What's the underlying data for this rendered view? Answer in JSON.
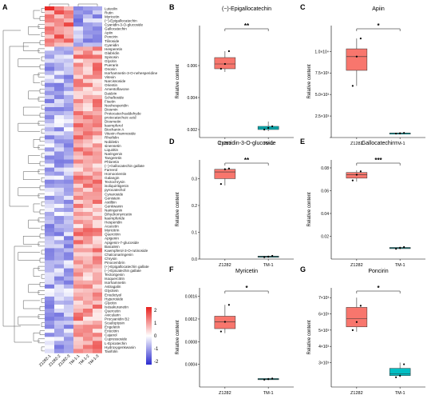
{
  "panels": {
    "A": "A",
    "B": "B",
    "C": "C",
    "D": "D",
    "E": "E",
    "F": "F",
    "G": "G"
  },
  "common": {
    "ylabel": "Relative content",
    "groups": [
      "Z1282",
      "TM-1"
    ],
    "sig_levels": {
      "B": "**",
      "C": "*",
      "D": "**",
      "E": "***",
      "F": "*",
      "G": "*"
    }
  },
  "colors": {
    "z1282_box": "#F8766D",
    "tm1_box": "#00BFC4",
    "heat_high": "#E8211E",
    "heat_mid": "#FFFFFF",
    "heat_low": "#2B2BCF"
  },
  "chart_data": [
    {
      "type": "heatmap",
      "panel": "A",
      "columns": [
        "Z1282-1",
        "Z1282-2",
        "Z1282-3",
        "TM-1-1",
        "TM-1-2",
        "TM-1-3"
      ],
      "rows": [
        "Luteolin",
        "Rutin",
        "Myricetin",
        "(−)-Epigallocatechin",
        "Cyanidin-3-O-glucoside",
        "Gallocatechin",
        "Apiin",
        "Poncirin",
        "Tiliroside",
        "Cyanidin",
        "Hesperetin",
        "Glabridin",
        "Spinosin",
        "Glycitin",
        "Puerarin",
        "Ononin",
        "Isorhamnetin-3-O-nehesperidine",
        "Vitexin",
        "Narcissoside",
        "Orientin",
        "Amentoflavone",
        "Daidzin",
        "Schaftoside",
        "Fisetin",
        "Neohesperidin",
        "Diosmin",
        "Protocatechualdehyde",
        "protocatechuic acid",
        "Diosmetin",
        "kaempferol",
        "Biochanin A",
        "Vitexin rhamnoside",
        "Rhoifolin",
        "Nobiletin",
        "sinensetin",
        "Liquiritin",
        "Naringenin",
        "Tangeretin",
        "Phloretin",
        "(−)-Gallocatechin gallate",
        "Farrerol",
        "Homoorientin",
        "Galangin",
        "Tectochrysin",
        "isoliquiritigenin",
        "pyrocatechol",
        "Cynaroside",
        "Genistein",
        "Astilbin",
        "Genkwanin",
        "Naringenin",
        "Dihydromyricetin",
        "kaempferide",
        "Hesperidin",
        "Acacetin",
        "Myricitrin",
        "Quercitrin",
        "Apigenin",
        "Apigenin-7-glucoside",
        "Baicalein",
        "Kaempferol-3-O-rutinoside",
        "Chalconaringenin",
        "Chrysin",
        "Pinocembrin",
        "(+)-Epigallocatechin gallate",
        "(−)-Epicatechin gallate",
        "Tectorigenin",
        "Isoquercitrin",
        "Isorhamnetin",
        "Astragalin",
        "Glycitein",
        "Eriodictyol",
        "Hyperoside",
        "Glycitin",
        "Isosakuranetin",
        "Quercetin",
        "Avicularin",
        "Procyanidin B2",
        "Scadoptysin",
        "Engeletin",
        "Eriocitrin",
        "Cajanol",
        "Cupressoside",
        "L-Epicatechin",
        "Hydroxygenkwanin",
        "Taxifolin"
      ],
      "legend_ticks": [
        2,
        1,
        0,
        -1,
        -2
      ]
    },
    {
      "type": "box",
      "panel": "B",
      "title": "(−)-Epigallocatechin",
      "xlabel": "",
      "ylabel": "Relative content",
      "categories": [
        "Z1282",
        "TM-1"
      ],
      "ylim": [
        0.0015,
        0.0085
      ],
      "yticks": [
        0.002,
        0.004,
        0.006
      ],
      "ytick_labels": [
        "0.002",
        "0.004",
        "0.006"
      ],
      "boxes": [
        {
          "min": 0.0056,
          "q1": 0.0058,
          "median": 0.0061,
          "q3": 0.0065,
          "max": 0.0069,
          "points": [
            0.0058,
            0.0061,
            0.0069
          ]
        },
        {
          "min": 0.0019,
          "q1": 0.002,
          "median": 0.0021,
          "q3": 0.0022,
          "max": 0.0025,
          "points": [
            0.002,
            0.0021,
            0.0022
          ]
        }
      ],
      "sig": "**"
    },
    {
      "type": "box",
      "panel": "C",
      "title": "Apiin",
      "xlabel": "",
      "ylabel": "Relative content",
      "categories": [
        "Z1282",
        "TM-1"
      ],
      "ylim": [
        0,
        13000
      ],
      "yticks": [
        0,
        2500,
        5000,
        7500,
        10000
      ],
      "ytick_labels": [
        "",
        "2.5×10³",
        "5.0×10³",
        "7.5×10³",
        "1.0×10⁴"
      ],
      "boxes": [
        {
          "min": 6000,
          "q1": 7800,
          "median": 9400,
          "q3": 10300,
          "max": 11500,
          "points": [
            6000,
            9400,
            11500
          ]
        },
        {
          "min": 450,
          "q1": 480,
          "median": 510,
          "q3": 530,
          "max": 560,
          "points": [
            460,
            500,
            540
          ]
        }
      ],
      "sig": "*"
    },
    {
      "type": "box",
      "panel": "D",
      "title": "Cyanidin-3-O-glucoside",
      "xlabel": "",
      "ylabel": "Relative content",
      "categories": [
        "Z1282",
        "TM-1"
      ],
      "ylim": [
        0.0,
        0.37
      ],
      "yticks": [
        0.0,
        0.1,
        0.2,
        0.3
      ],
      "ytick_labels": [
        "0.0",
        "0.1",
        "0.2",
        "0.3"
      ],
      "boxes": [
        {
          "min": 0.275,
          "q1": 0.3,
          "median": 0.325,
          "q3": 0.335,
          "max": 0.34,
          "points": [
            0.28,
            0.335,
            0.338
          ]
        },
        {
          "min": 0.005,
          "q1": 0.007,
          "median": 0.009,
          "q3": 0.011,
          "max": 0.013,
          "points": [
            0.007,
            0.009,
            0.012
          ]
        }
      ],
      "sig": "**"
    },
    {
      "type": "box",
      "panel": "E",
      "title": "Gallocatechin",
      "xlabel": "",
      "ylabel": "Relative content",
      "categories": [
        "Z1282",
        "TM-1"
      ],
      "ylim": [
        0.0,
        0.087
      ],
      "yticks": [
        0.02,
        0.04,
        0.06,
        0.08
      ],
      "ytick_labels": [
        "0.02",
        "0.04",
        "0.06",
        "0.08"
      ],
      "boxes": [
        {
          "min": 0.068,
          "q1": 0.071,
          "median": 0.074,
          "q3": 0.076,
          "max": 0.078,
          "points": [
            0.069,
            0.074,
            0.077
          ]
        },
        {
          "min": 0.0085,
          "q1": 0.0092,
          "median": 0.0098,
          "q3": 0.0102,
          "max": 0.011,
          "points": [
            0.009,
            0.0098,
            0.0105
          ]
        }
      ],
      "sig": "***"
    },
    {
      "type": "box",
      "panel": "F",
      "title": "Myricetin",
      "xlabel": "",
      "ylabel": "Relative content",
      "categories": [
        "Z1282",
        "TM-1"
      ],
      "ylim": [
        0.0,
        0.00175
      ],
      "yticks": [
        0.0004,
        0.0008,
        0.0012,
        0.0016
      ],
      "ytick_labels": [
        "0.0004",
        "0.0008",
        "0.0012",
        "0.0016"
      ],
      "boxes": [
        {
          "min": 0.00095,
          "q1": 0.00103,
          "median": 0.00115,
          "q3": 0.00125,
          "max": 0.00145,
          "points": [
            0.00098,
            0.00115,
            0.00145
          ]
        },
        {
          "min": 0.00012,
          "q1": 0.00013,
          "median": 0.00014,
          "q3": 0.00015,
          "max": 0.00016,
          "points": [
            0.00013,
            0.00014,
            0.00015
          ]
        }
      ],
      "sig": "*"
    },
    {
      "type": "box",
      "panel": "G",
      "title": "Poncirin",
      "xlabel": "",
      "ylabel": "Relative content",
      "categories": [
        "Z1282",
        "TM-1"
      ],
      "ylim": [
        1500,
        7600
      ],
      "yticks": [
        3000,
        4000,
        5000,
        6000,
        7000
      ],
      "ytick_labels": [
        "3×10³",
        "4×10³",
        "5×10³",
        "6×10³",
        "7×10³"
      ],
      "boxes": [
        {
          "min": 4900,
          "q1": 5200,
          "median": 5700,
          "q3": 6400,
          "max": 7000,
          "points": [
            5000,
            5500,
            6500
          ]
        },
        {
          "min": 2100,
          "q1": 2200,
          "median": 2300,
          "q3": 2650,
          "max": 3000,
          "points": [
            2100,
            2200,
            2900
          ]
        }
      ],
      "sig": "*"
    }
  ]
}
